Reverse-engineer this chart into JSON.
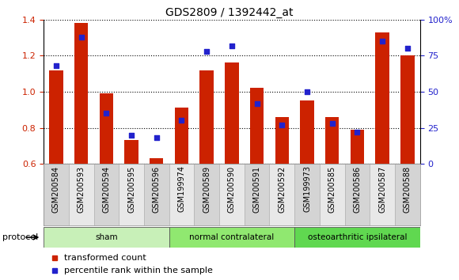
{
  "title": "GDS2809 / 1392442_at",
  "categories": [
    "GSM200584",
    "GSM200593",
    "GSM200594",
    "GSM200595",
    "GSM200596",
    "GSM199974",
    "GSM200589",
    "GSM200590",
    "GSM200591",
    "GSM200592",
    "GSM199973",
    "GSM200585",
    "GSM200586",
    "GSM200587",
    "GSM200588"
  ],
  "red_bars": [
    1.12,
    1.38,
    0.99,
    0.73,
    0.63,
    0.91,
    1.12,
    1.16,
    1.02,
    0.86,
    0.95,
    0.86,
    0.79,
    1.33,
    1.2
  ],
  "blue_squares": [
    68,
    88,
    35,
    20,
    18,
    30,
    78,
    82,
    42,
    27,
    50,
    28,
    22,
    85,
    80
  ],
  "ylim_left": [
    0.6,
    1.4
  ],
  "ylim_right": [
    0,
    100
  ],
  "yticks_left": [
    0.6,
    0.8,
    1.0,
    1.2,
    1.4
  ],
  "yticks_right": [
    0,
    25,
    50,
    75,
    100
  ],
  "ytick_labels_right": [
    "0",
    "25",
    "50",
    "75",
    "100%"
  ],
  "groups": [
    {
      "label": "sham",
      "start": 0,
      "end": 5
    },
    {
      "label": "normal contralateral",
      "start": 5,
      "end": 10
    },
    {
      "label": "osteoarthritic ipsilateral",
      "start": 10,
      "end": 15
    }
  ],
  "group_colors": [
    "#c8f0b8",
    "#90e870",
    "#60d850"
  ],
  "protocol_label": "protocol",
  "red_color": "#cc2200",
  "blue_color": "#2222cc",
  "bar_width": 0.55,
  "legend_red": "transformed count",
  "legend_blue": "percentile rank within the sample",
  "title_fontsize": 10,
  "tick_label_fontsize": 7,
  "axis_fontsize": 8,
  "col_bg_even": "#d4d4d4",
  "col_bg_odd": "#e8e8e8"
}
